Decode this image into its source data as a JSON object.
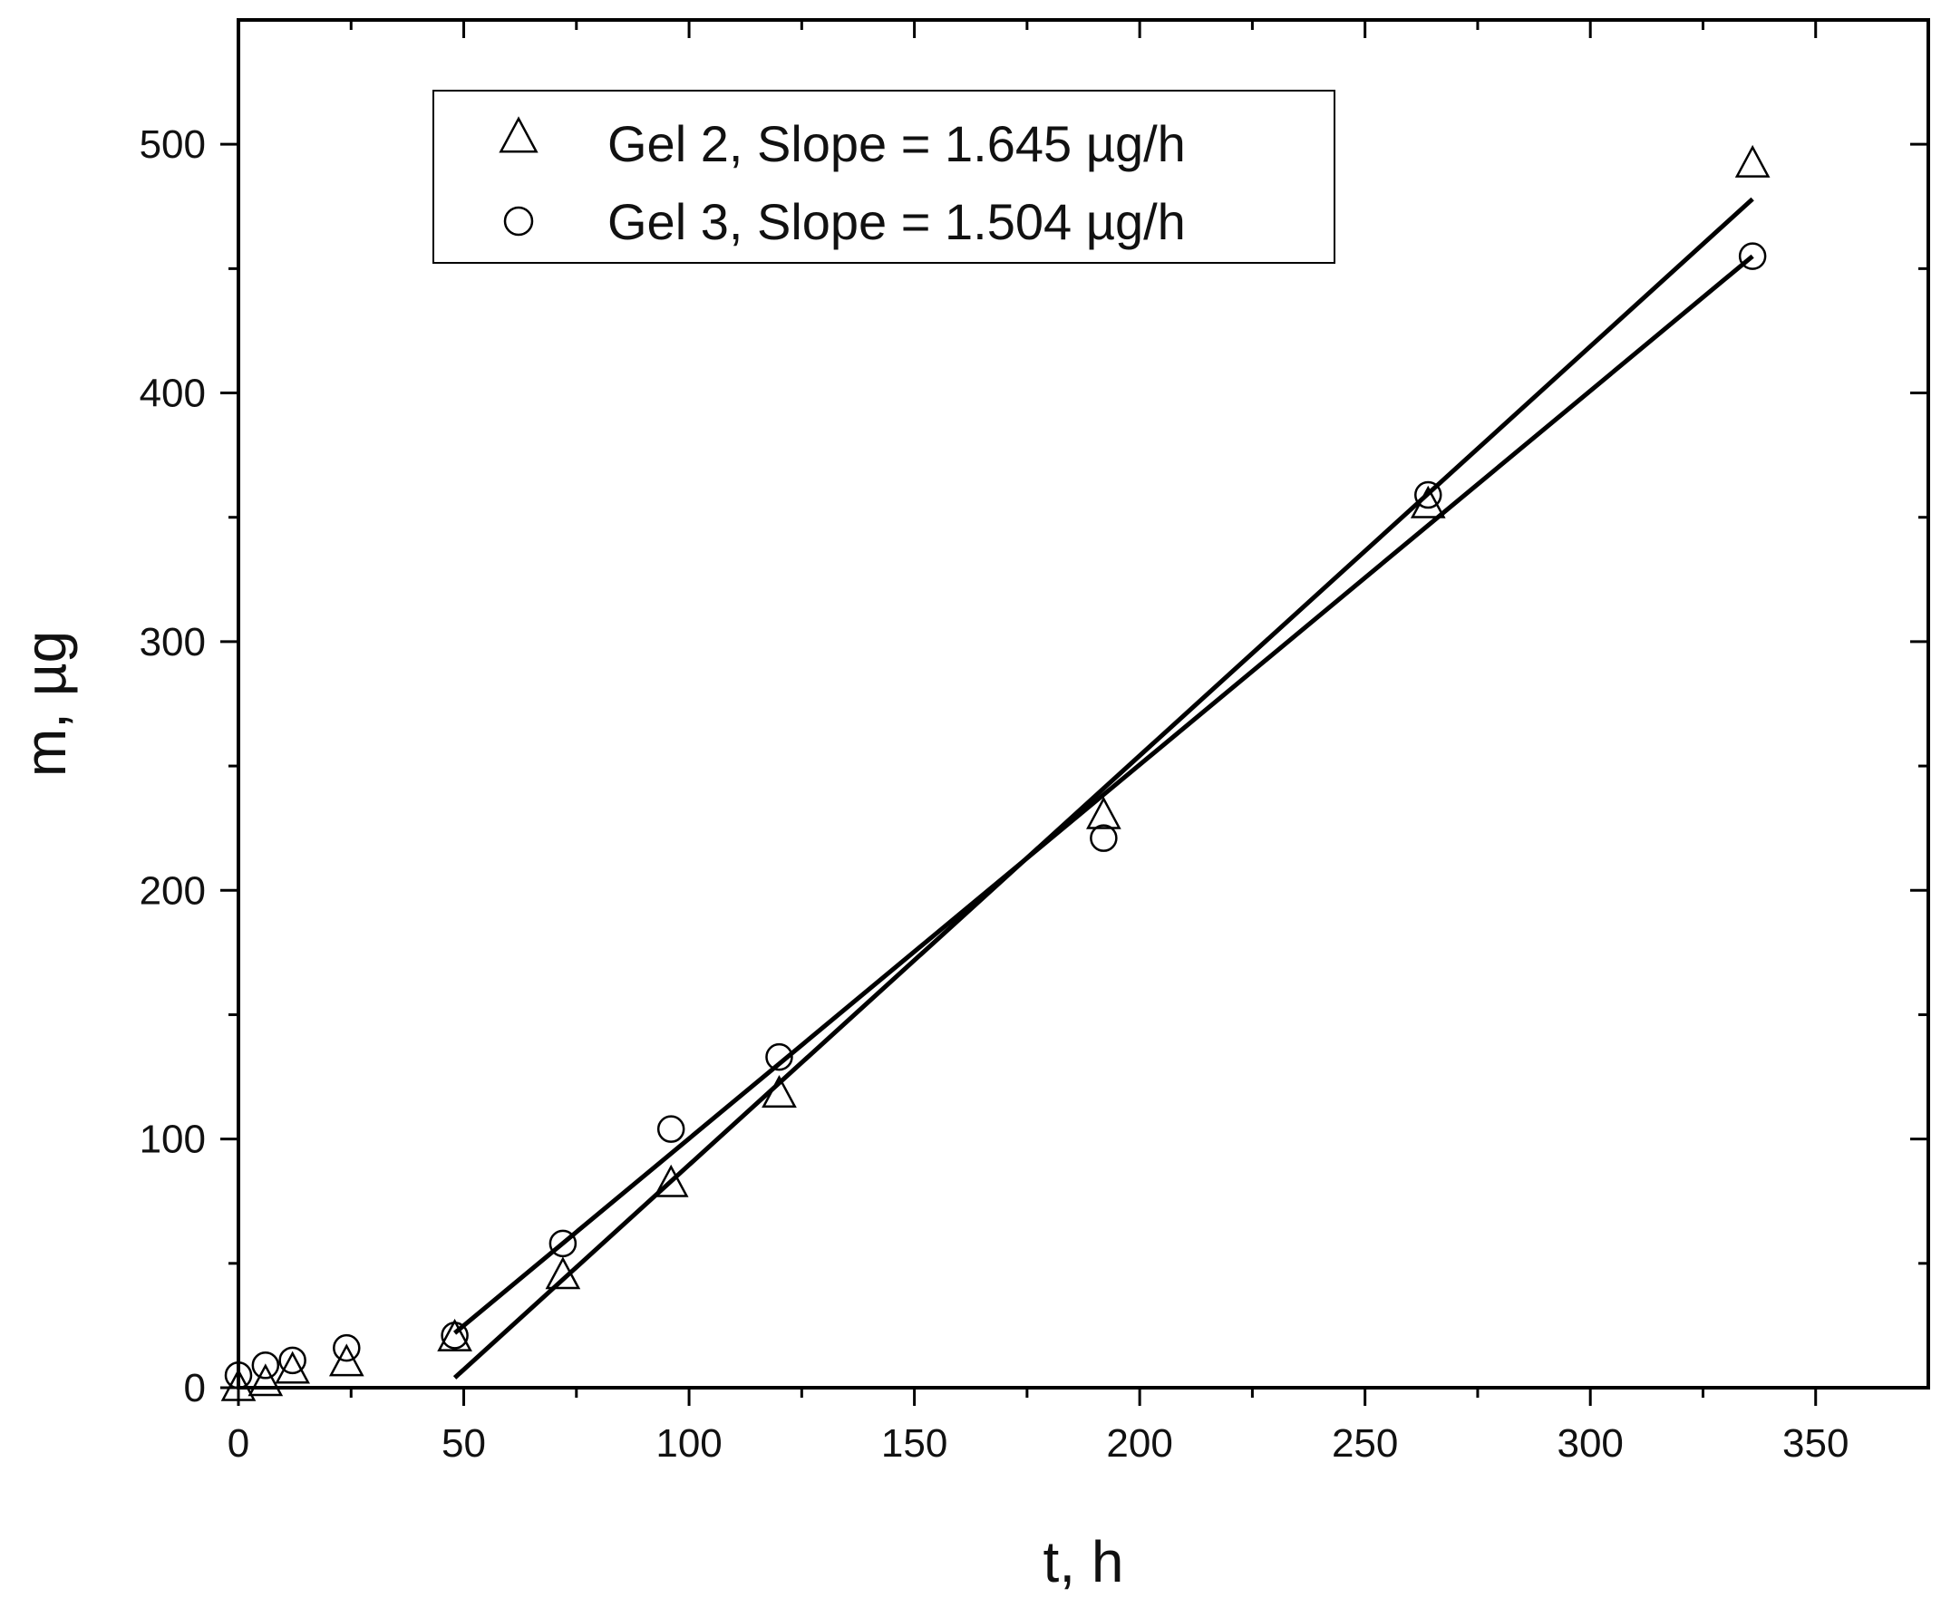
{
  "chart_data": {
    "type": "scatter",
    "xlabel": "t, h",
    "ylabel": "m, µg",
    "xlim": [
      0,
      375
    ],
    "ylim": [
      0,
      550
    ],
    "x_ticks": [
      0,
      50,
      100,
      150,
      200,
      250,
      300,
      350
    ],
    "y_ticks": [
      0,
      100,
      200,
      300,
      400,
      500
    ],
    "x_minor_step": 25,
    "y_minor_step": 50,
    "grid": false,
    "legend_position": "top-left",
    "series": [
      {
        "name": "Gel 2, Slope = 1.645 µg/h",
        "marker": "triangle",
        "x": [
          0,
          6,
          12,
          24,
          48,
          72,
          96,
          120,
          192,
          264,
          336
        ],
        "y": [
          0,
          2,
          7,
          10,
          20,
          45,
          82,
          118,
          230,
          355,
          492
        ],
        "fit": {
          "slope": 1.645,
          "x_start": 48,
          "x_end": 336,
          "y_start": 4,
          "y_end": 478
        }
      },
      {
        "name": "Gel 3, Slope = 1.504 µg/h",
        "marker": "circle",
        "x": [
          0,
          6,
          12,
          24,
          48,
          72,
          96,
          120,
          192,
          264,
          336
        ],
        "y": [
          5,
          9,
          11,
          16,
          21,
          58,
          104,
          133,
          221,
          359,
          455
        ],
        "fit": {
          "slope": 1.504,
          "x_start": 48,
          "x_end": 336,
          "y_start": 22,
          "y_end": 455
        }
      }
    ]
  }
}
